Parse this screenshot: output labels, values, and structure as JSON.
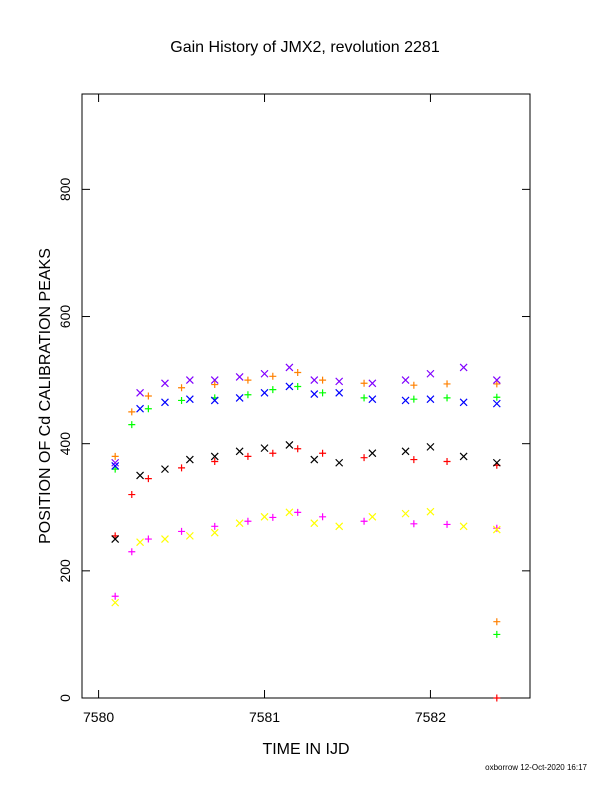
{
  "chart_data": {
    "type": "scatter",
    "title": "Gain History of JMX2, revolution 2281",
    "xlabel": "TIME IN IJD",
    "ylabel": "POSITION OF Cd CALIBRATION PEAKS",
    "xlim": [
      7579.9,
      7582.6
    ],
    "ylim": [
      0,
      950
    ],
    "xticks": [
      7580,
      7581,
      7582
    ],
    "yticks": [
      0,
      200,
      400,
      600,
      800
    ],
    "grid": false,
    "series": [
      {
        "color": "#ff8000",
        "marker": "plus",
        "x": [
          7580.1,
          7580.2,
          7580.3,
          7580.5,
          7580.7,
          7580.9,
          7581.05,
          7581.2,
          7581.35,
          7581.6,
          7581.9,
          7582.1,
          7582.4
        ],
        "values": [
          380,
          450,
          475,
          488,
          493,
          500,
          506,
          512,
          500,
          495,
          492,
          494,
          494
        ]
      },
      {
        "color": "#00ff00",
        "marker": "plus",
        "x": [
          7580.1,
          7580.2,
          7580.3,
          7580.5,
          7580.7,
          7580.9,
          7581.05,
          7581.2,
          7581.35,
          7581.6,
          7581.9,
          7582.1,
          7582.4
        ],
        "values": [
          360,
          430,
          455,
          468,
          472,
          477,
          485,
          490,
          480,
          472,
          470,
          472,
          473
        ]
      },
      {
        "color": "#ff0000",
        "marker": "plus",
        "x": [
          7580.1,
          7580.2,
          7580.3,
          7580.5,
          7580.7,
          7580.9,
          7581.05,
          7581.2,
          7581.35,
          7581.6,
          7581.9,
          7582.1,
          7582.4
        ],
        "values": [
          255,
          320,
          345,
          362,
          372,
          380,
          385,
          392,
          385,
          378,
          375,
          372,
          366
        ]
      },
      {
        "color": "#ff00ff",
        "marker": "plus",
        "x": [
          7580.1,
          7580.2,
          7580.3,
          7580.5,
          7580.7,
          7580.9,
          7581.05,
          7581.2,
          7581.35,
          7581.6,
          7581.9,
          7582.1,
          7582.4
        ],
        "values": [
          160,
          230,
          250,
          262,
          270,
          278,
          284,
          292,
          285,
          278,
          274,
          273,
          267
        ]
      },
      {
        "color": "#000000",
        "marker": "cross",
        "x": [
          7580.1,
          7580.25,
          7580.4,
          7580.55,
          7580.7,
          7580.85,
          7581.0,
          7581.15,
          7581.3,
          7581.45,
          7581.65,
          7581.85,
          7582.0,
          7582.2,
          7582.4
        ],
        "values": [
          250,
          350,
          360,
          375,
          380,
          388,
          393,
          398,
          375,
          370,
          385,
          388,
          395,
          380,
          370
        ]
      },
      {
        "color": "#ffff00",
        "marker": "cross",
        "x": [
          7580.1,
          7580.25,
          7580.4,
          7580.55,
          7580.7,
          7580.85,
          7581.0,
          7581.15,
          7581.3,
          7581.45,
          7581.65,
          7581.85,
          7582.0,
          7582.2,
          7582.4
        ],
        "values": [
          150,
          245,
          250,
          255,
          260,
          275,
          285,
          292,
          275,
          270,
          285,
          290,
          293,
          270,
          265
        ]
      },
      {
        "color": "#8000ff",
        "marker": "cross",
        "x": [
          7580.1,
          7580.25,
          7580.4,
          7580.55,
          7580.7,
          7580.85,
          7581.0,
          7581.15,
          7581.3,
          7581.45,
          7581.65,
          7581.85,
          7582.0,
          7582.2,
          7582.4
        ],
        "values": [
          370,
          480,
          495,
          500,
          500,
          505,
          510,
          520,
          500,
          498,
          495,
          500,
          510,
          520,
          500
        ]
      },
      {
        "color": "#0000ff",
        "marker": "cross",
        "x": [
          7580.1,
          7580.25,
          7580.4,
          7580.55,
          7580.7,
          7580.85,
          7581.0,
          7581.15,
          7581.3,
          7581.45,
          7581.65,
          7581.85,
          7582.0,
          7582.2,
          7582.4
        ],
        "values": [
          365,
          455,
          465,
          470,
          468,
          472,
          480,
          490,
          478,
          480,
          470,
          468,
          470,
          465,
          463
        ]
      },
      {
        "color": "#ff8000",
        "marker": "plus",
        "x": [
          7582.4
        ],
        "values": [
          120
        ]
      },
      {
        "color": "#00ff00",
        "marker": "plus",
        "x": [
          7582.4
        ],
        "values": [
          100
        ]
      },
      {
        "color": "#ff0000",
        "marker": "plus",
        "x": [
          7582.4
        ],
        "values": [
          0
        ]
      }
    ]
  },
  "footer": {
    "credit": "oxborrow 12-Oct-2020 16:17"
  }
}
